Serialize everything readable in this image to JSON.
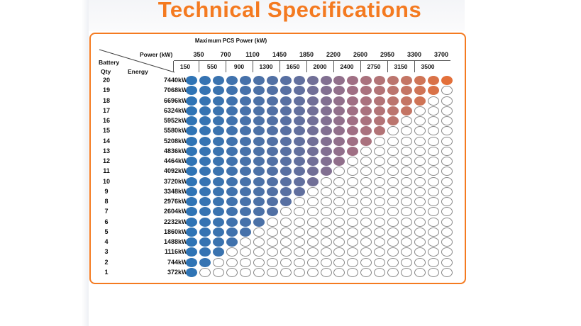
{
  "title": "Technical Specifications",
  "table": {
    "title": "Maximum PCS Power (kW)",
    "power_label": "Power (kW)",
    "battery_label": "Battery",
    "qty_label": "Qty",
    "energy_label": "Energy",
    "power_top": [
      "350",
      "700",
      "1100",
      "1450",
      "1850",
      "2200",
      "2600",
      "2950",
      "3300",
      "3700"
    ],
    "power_bottom": [
      "150",
      "550",
      "900",
      "1300",
      "1650",
      "2000",
      "2400",
      "2750",
      "3150",
      "3500"
    ],
    "rows": [
      {
        "qty": "20",
        "energy": "7440kWh"
      },
      {
        "qty": "19",
        "energy": "7068kWh"
      },
      {
        "qty": "18",
        "energy": "6696kWh"
      },
      {
        "qty": "17",
        "energy": "6324kWh"
      },
      {
        "qty": "16",
        "energy": "5952kWh"
      },
      {
        "qty": "15",
        "energy": "5580kWh"
      },
      {
        "qty": "14",
        "energy": "5208kWh"
      },
      {
        "qty": "13",
        "energy": "4836kWh"
      },
      {
        "qty": "12",
        "energy": "4464kWh"
      },
      {
        "qty": "11",
        "energy": "4092kWh"
      },
      {
        "qty": "10",
        "energy": "3720kWh"
      },
      {
        "qty": "9",
        "energy": "3348kWh"
      },
      {
        "qty": "8",
        "energy": "2976kWh"
      },
      {
        "qty": "7",
        "energy": "2604kWh"
      },
      {
        "qty": "6",
        "energy": "2232kWh"
      },
      {
        "qty": "5",
        "energy": "1860kWh"
      },
      {
        "qty": "4",
        "energy": "1488kWh"
      },
      {
        "qty": "3",
        "energy": "1116kWh"
      },
      {
        "qty": "2",
        "energy": "744kWh"
      },
      {
        "qty": "1",
        "energy": "372kWh"
      }
    ],
    "columns_per_row": 20,
    "filled_counts": [
      20,
      19,
      18,
      17,
      16,
      15,
      14,
      13,
      12,
      11,
      10,
      9,
      8,
      7,
      6,
      5,
      4,
      3,
      2,
      1
    ],
    "colors": {
      "blue": "#2f74b5",
      "slate": "#5a6fa0",
      "mauve": "#9e6f86",
      "rose": "#c0766a",
      "orange": "#e3703a",
      "accent_orange": "#f47a20",
      "empty_border": "#8a8a8a"
    }
  }
}
